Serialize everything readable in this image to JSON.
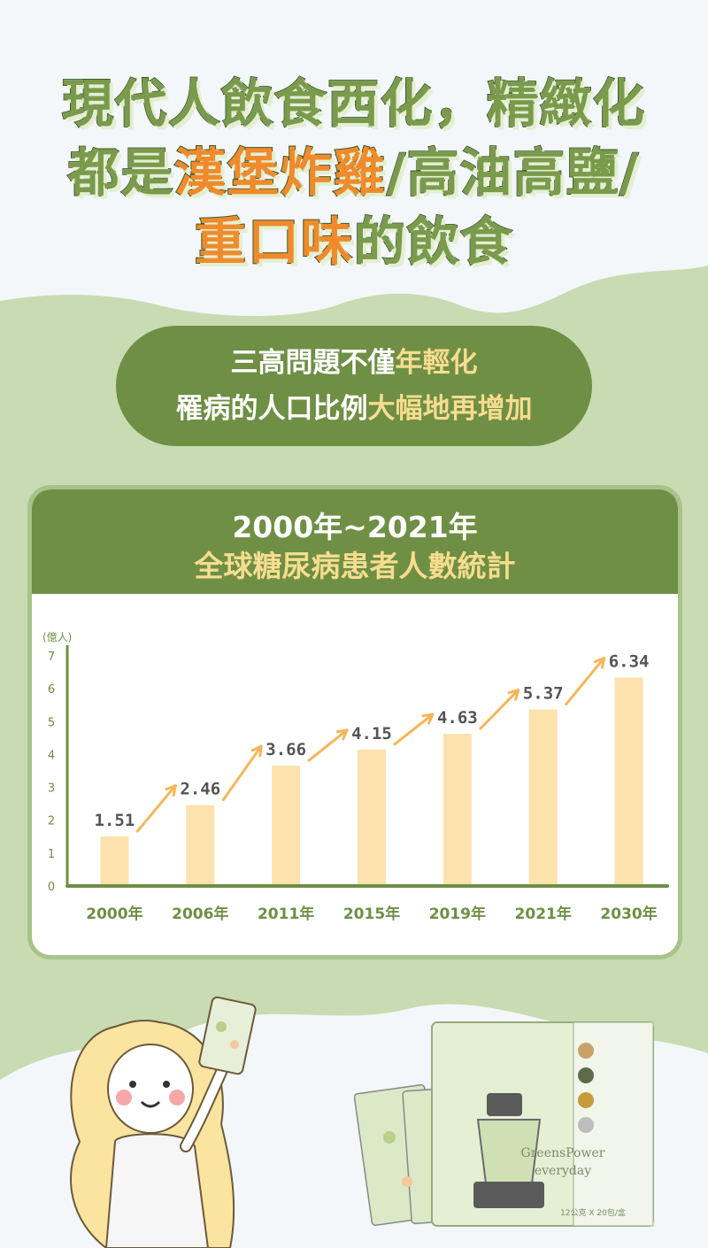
{
  "headline": {
    "line1": "現代人飲食西化，精緻化",
    "line2_a": "都是",
    "line2_b": "漢堡炸雞",
    "line2_c": "/",
    "line2_d": "高油高鹽",
    "line2_e": "/",
    "line3_a": "重口味",
    "line3_b": "的飲食"
  },
  "pill": {
    "line1_a": "三高問題不僅",
    "line1_b": "年輕化",
    "line2_a": "罹病的人口比例",
    "line2_b": "大幅地再增加"
  },
  "card": {
    "title1": "2000年~2021年",
    "title2": "全球糖尿病患者人數統計"
  },
  "chart_data": {
    "type": "bar",
    "ylabel": "(億人)",
    "categories": [
      "2000年",
      "2006年",
      "2011年",
      "2015年",
      "2019年",
      "2021年",
      "2030年"
    ],
    "values": [
      1.51,
      2.46,
      3.66,
      4.15,
      4.63,
      5.37,
      6.34
    ],
    "value_labels": [
      "1.51",
      "2.46",
      "3.66",
      "4.15",
      "4.63",
      "5.37",
      "6.34"
    ],
    "yticks": [
      "0",
      "1",
      "2",
      "3",
      "4",
      "5",
      "6",
      "7"
    ],
    "ylim": [
      0,
      7
    ],
    "grid": false,
    "trend_arrows": true,
    "colors": {
      "bar": "#fde2ae",
      "axis": "#6f8f45",
      "arrow": "#f5b65a",
      "label": "#555555",
      "tick": "#6f8f45"
    }
  },
  "product": {
    "brand_line1": "GreensPower",
    "brand_line2": "everyday",
    "package_note": "12公克 X 20包/盒"
  },
  "colors": {
    "dark_green": "#6f8f45",
    "light_green": "#c9dbb2",
    "orange": "#ef8b2c",
    "yellow": "#f6dd8f"
  }
}
